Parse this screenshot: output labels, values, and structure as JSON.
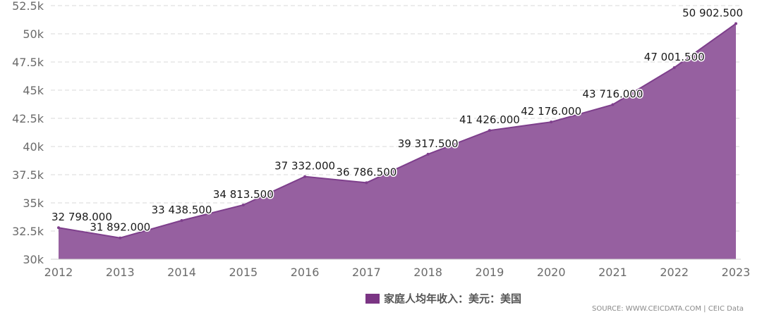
{
  "chart_data": {
    "type": "area",
    "categories": [
      "2012",
      "2013",
      "2014",
      "2015",
      "2016",
      "2017",
      "2018",
      "2019",
      "2020",
      "2021",
      "2022",
      "2023"
    ],
    "series": [
      {
        "name": "家庭人均年收入：美元：美国",
        "values": [
          32798,
          31892,
          33438.5,
          34813.5,
          37332,
          36786.5,
          39317.5,
          41426,
          42176,
          43716,
          47001.5,
          50902.5
        ],
        "value_labels": [
          "32 798.000",
          "31 892.000",
          "33 438.500",
          "34 813.500",
          "37 332.000",
          "36 786.500",
          "39 317.500",
          "41 426.000",
          "42 176.000",
          "43 716.000",
          "47 001.500",
          "50 902.500"
        ]
      }
    ],
    "ylim": [
      30000,
      52500
    ],
    "yticks": [
      30000,
      32500,
      35000,
      37500,
      40000,
      42500,
      45000,
      47500,
      50000,
      52500
    ],
    "ytick_labels": [
      "30k",
      "32.5k",
      "35k",
      "37.5k",
      "40k",
      "42.5k",
      "45k",
      "47.5k",
      "50k",
      "52.5k"
    ],
    "grid": true,
    "legend_position": "bottom-center",
    "color": "#9660a0",
    "legend_color": "#7b3584"
  },
  "source": "SOURCE: WWW.CEICDATA.COM | CEIC Data"
}
